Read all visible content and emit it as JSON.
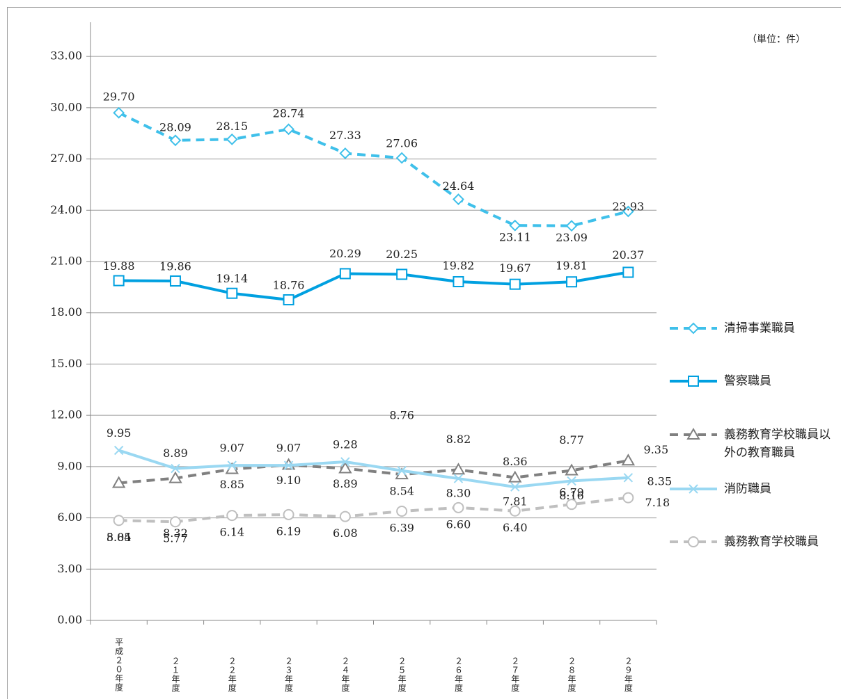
{
  "chart_data": {
    "type": "line",
    "unit_label": "（単位：件）",
    "categories": [
      "平成２０年度",
      "２１年度",
      "２２年度",
      "２３年度",
      "２４年度",
      "２５年度",
      "２６年度",
      "２７年度",
      "２８年度",
      "２９年度"
    ],
    "ylim": [
      0,
      35
    ],
    "yticks": [
      {
        "value": 0,
        "label": "0.00"
      },
      {
        "value": 3,
        "label": "3.00"
      },
      {
        "value": 6,
        "label": "6.00"
      },
      {
        "value": 9,
        "label": "9.00"
      },
      {
        "value": 12,
        "label": "12.00"
      },
      {
        "value": 15,
        "label": "15.00"
      },
      {
        "value": 18,
        "label": "18.00"
      },
      {
        "value": 21,
        "label": "21.00"
      },
      {
        "value": 24,
        "label": "24.00"
      },
      {
        "value": 27,
        "label": "27.00"
      },
      {
        "value": 30,
        "label": "30.00"
      },
      {
        "value": 33,
        "label": "33.00"
      }
    ],
    "grid": true,
    "series": [
      {
        "name": "清掃事業職員",
        "color": "#3fc0ea",
        "dashed": true,
        "marker": "diamond",
        "values": [
          29.7,
          28.09,
          28.15,
          28.74,
          27.33,
          27.06,
          24.64,
          23.11,
          23.09,
          23.93
        ],
        "value_labels": [
          "29.70",
          "28.09",
          "28.15",
          "28.74",
          "27.33",
          "27.06",
          "24.64",
          "23.11",
          "23.09",
          "23.93"
        ]
      },
      {
        "name": "警察職員",
        "color": "#00a0e0",
        "dashed": false,
        "marker": "square",
        "values": [
          19.88,
          19.86,
          19.14,
          18.76,
          20.29,
          20.25,
          19.82,
          19.67,
          19.81,
          20.37
        ],
        "value_labels": [
          "19.88",
          "19.86",
          "19.14",
          "18.76",
          "20.29",
          "20.25",
          "19.82",
          "19.67",
          "19.81",
          "20.37"
        ]
      },
      {
        "name": "義務教育学校職員以外の教育職員",
        "color": "#808080",
        "dashed": true,
        "marker": "triangle",
        "values": [
          8.04,
          8.32,
          8.85,
          9.1,
          8.89,
          8.54,
          8.82,
          8.36,
          8.77,
          9.35
        ],
        "value_labels": [
          "8.04",
          "8.32",
          "8.85",
          "9.10",
          "8.89",
          "8.54",
          "8.82",
          "8.36",
          "8.77",
          "9.35"
        ]
      },
      {
        "name": "消防職員",
        "color": "#9ad8f2",
        "dashed": false,
        "marker": "x",
        "values": [
          9.95,
          8.89,
          9.07,
          9.07,
          9.28,
          8.76,
          8.3,
          7.81,
          8.16,
          8.35
        ],
        "value_labels": [
          "9.95",
          "8.89",
          "9.07",
          "9.07",
          "9.28",
          "8.76",
          "8.30",
          "7.81",
          "8.16",
          "8.35"
        ]
      },
      {
        "name": "義務教育学校職員",
        "color": "#bfbfbf",
        "dashed": true,
        "marker": "circle",
        "values": [
          5.85,
          5.77,
          6.14,
          6.19,
          6.08,
          6.39,
          6.6,
          6.4,
          6.79,
          7.18
        ],
        "value_labels": [
          "5.85",
          "5.77",
          "6.14",
          "6.19",
          "6.08",
          "6.39",
          "6.60",
          "6.40",
          "6.79",
          "7.18"
        ]
      }
    ]
  }
}
